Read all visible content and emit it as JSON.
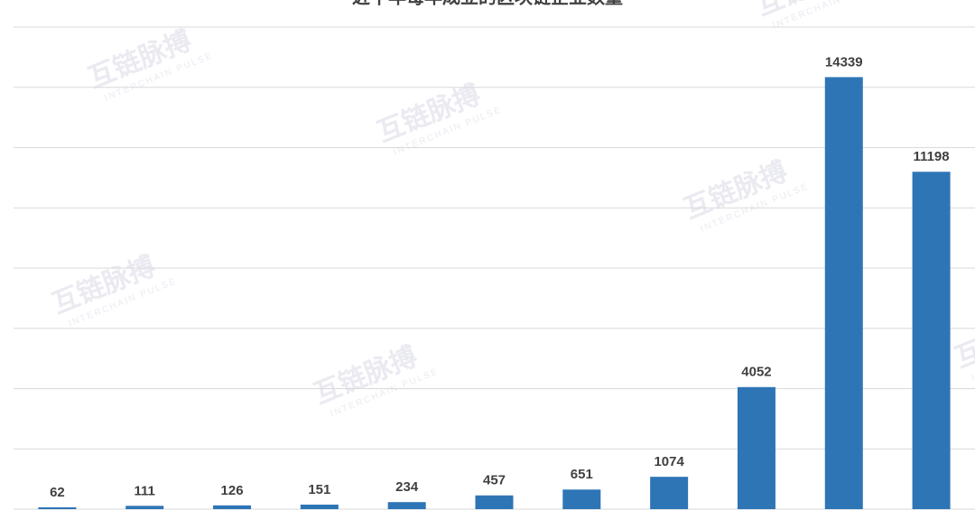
{
  "chart_data": {
    "type": "bar",
    "title": "近十年每年成立的区块链企业数量",
    "categories": [
      null,
      null,
      null,
      null,
      null,
      null,
      null,
      null,
      null,
      null,
      null
    ],
    "values": [
      62,
      111,
      126,
      151,
      234,
      457,
      651,
      1074,
      4052,
      14339,
      11198
    ],
    "color": "#2e75b6",
    "ylim": [
      0,
      16000
    ],
    "yticks": [
      0,
      2000,
      4000,
      6000,
      8000,
      10000,
      12000,
      14000,
      16000
    ],
    "grid": true,
    "watermark": {
      "name": "互链脉搏",
      "subtitle": "INTERCHAIN PULSE"
    }
  }
}
